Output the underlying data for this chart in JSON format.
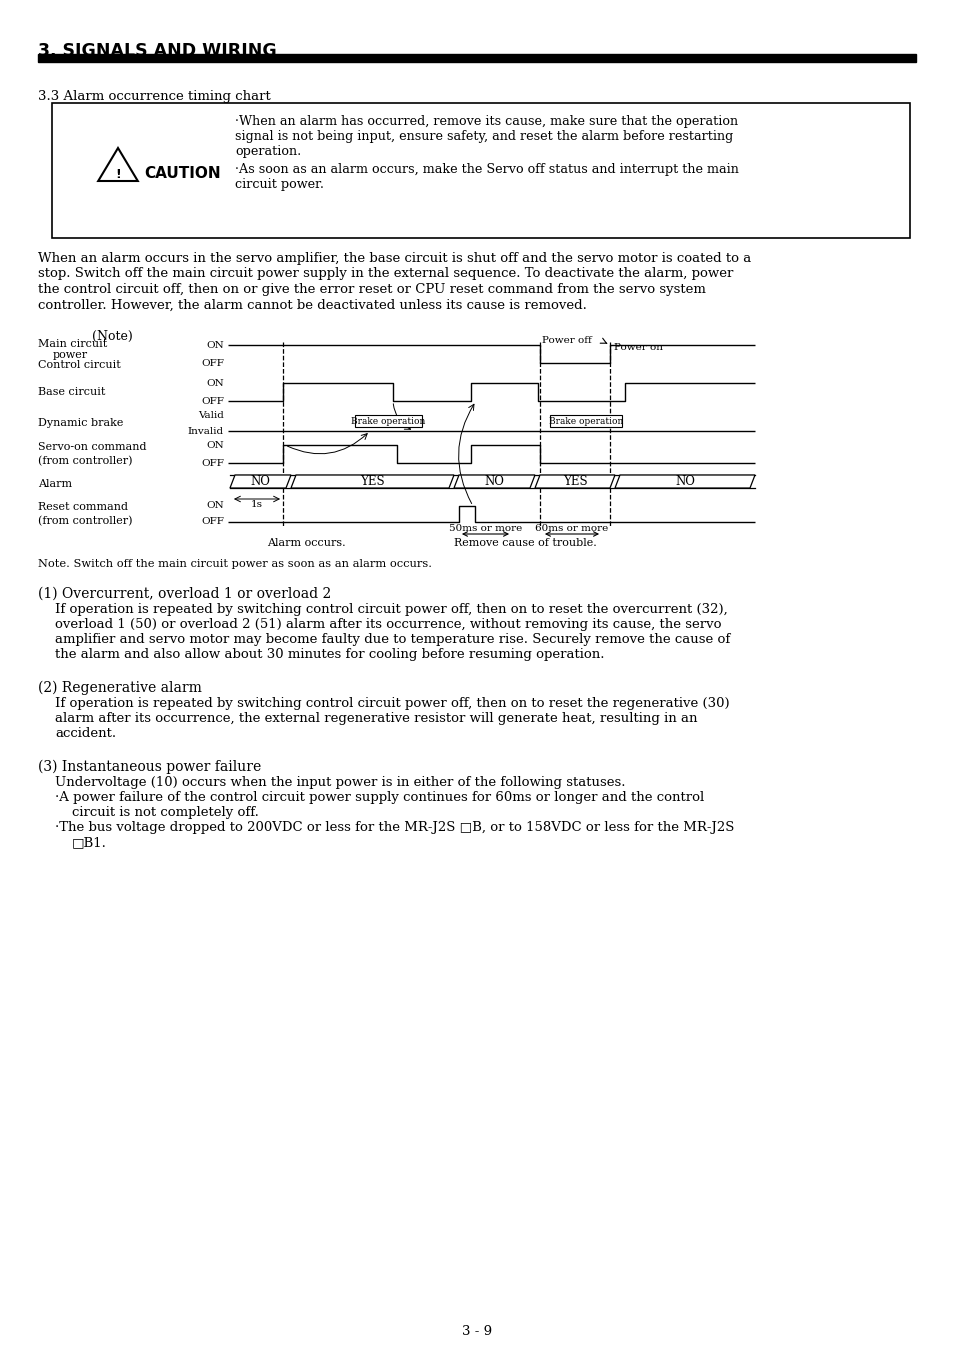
{
  "page_title": "3. SIGNALS AND WIRING",
  "section": "3.3 Alarm occurrence timing chart",
  "caution_text1a": "·When an alarm has occurred, remove its cause, make sure that the operation",
  "caution_text1b": "signal is not being input, ensure safety, and reset the alarm before restarting",
  "caution_text1c": "operation.",
  "caution_text2a": "·As soon as an alarm occurs, make the Servo off status and interrupt the main",
  "caution_text2b": "circuit power.",
  "para_lines": [
    "When an alarm occurs in the servo amplifier, the base circuit is shut off and the servo motor is coated to a",
    "stop. Switch off the main circuit power supply in the external sequence. To deactivate the alarm, power",
    "the control circuit off, then on or give the error reset or CPU reset command from the servo system",
    "controller. However, the alarm cannot be deactivated unless its cause is removed."
  ],
  "section1_title": "(1) Overcurrent, overload 1 or overload 2",
  "section1_lines": [
    "If operation is repeated by switching control circuit power off, then on to reset the overcurrent (32),",
    "overload 1 (50) or overload 2 (51) alarm after its occurrence, without removing its cause, the servo",
    "amplifier and servo motor may become faulty due to temperature rise. Securely remove the cause of",
    "the alarm and also allow about 30 minutes for cooling before resuming operation."
  ],
  "section2_title": "(2) Regenerative alarm",
  "section2_lines": [
    "If operation is repeated by switching control circuit power off, then on to reset the regenerative (30)",
    "alarm after its occurrence, the external regenerative resistor will generate heat, resulting in an",
    "accident."
  ],
  "section3_title": "(3) Instantaneous power failure",
  "section3_intro": "Undervoltage (10) occurs when the input power is in either of the following statuses.",
  "section3_b1a": "·A power failure of the control circuit power supply continues for 60ms or longer and the control",
  "section3_b1b": "circuit is not completely off.",
  "section3_b2a": "·The bus voltage dropped to 200VDC or less for the MR-J2S □B, or to 158VDC or less for the MR-J2S",
  "section3_b2b": "□B1.",
  "page_number": "3 - 9",
  "bg_color": "#ffffff"
}
